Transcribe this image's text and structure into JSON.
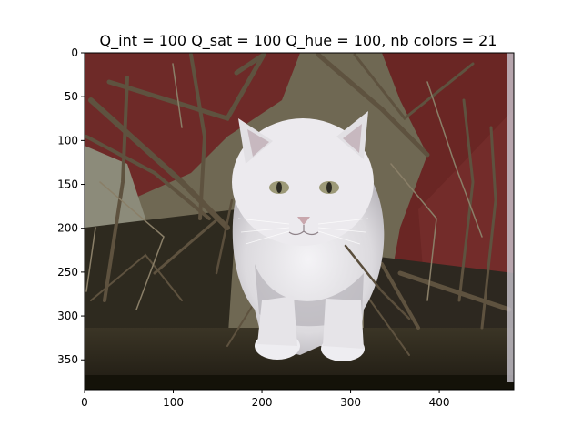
{
  "figure": {
    "title": "Q_int = 100 Q_sat = 100 Q_hue = 100, nb colors = 21",
    "image_subject": "white cat standing among dry branches in front of a dark red barn wall",
    "colors": {
      "barn_red": "#6e2a28",
      "cat_white": "#e8e6ea",
      "branches": "#5a4e3c",
      "ground_dark": "#2a261c"
    }
  },
  "axes": {
    "xlim": [
      0,
      484
    ],
    "ylim": [
      384,
      0
    ],
    "xticks": [
      {
        "value": 0,
        "label": "0"
      },
      {
        "value": 100,
        "label": "100"
      },
      {
        "value": 200,
        "label": "200"
      },
      {
        "value": 300,
        "label": "300"
      },
      {
        "value": 400,
        "label": "400"
      }
    ],
    "yticks": [
      {
        "value": 0,
        "label": "0"
      },
      {
        "value": 50,
        "label": "50"
      },
      {
        "value": 100,
        "label": "100"
      },
      {
        "value": 150,
        "label": "150"
      },
      {
        "value": 200,
        "label": "200"
      },
      {
        "value": 250,
        "label": "250"
      },
      {
        "value": 300,
        "label": "300"
      },
      {
        "value": 350,
        "label": "350"
      }
    ]
  }
}
